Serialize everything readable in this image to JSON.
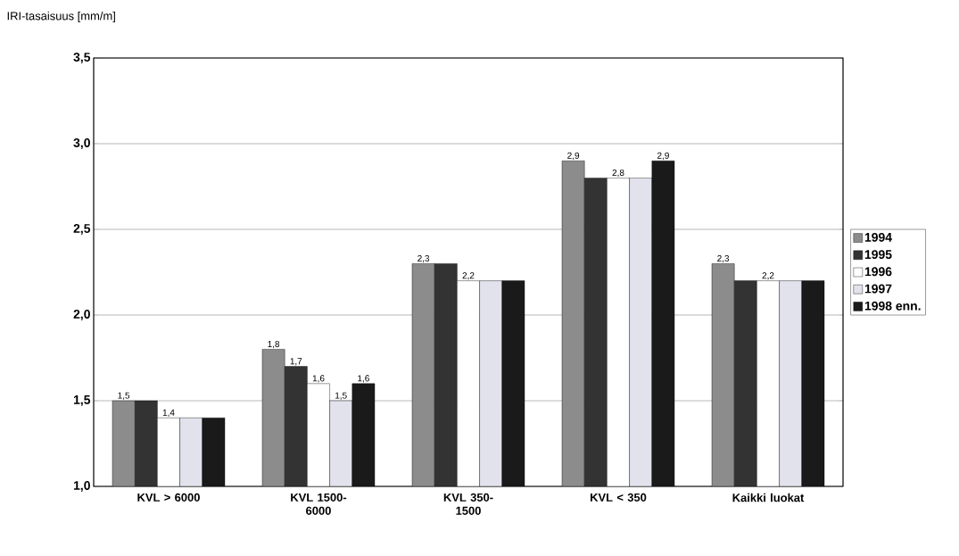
{
  "chart_data": {
    "type": "bar",
    "ylabel": "IRI-tasaisuus [mm/m]",
    "categories": [
      "KVL > 6000",
      "KVL 1500-6000",
      "KVL 350-1500",
      "KVL < 350",
      "Kaikki luokat"
    ],
    "series": [
      {
        "name": "1994",
        "color": "#8c8c8c",
        "values": [
          1.5,
          1.8,
          2.3,
          2.9,
          2.3
        ],
        "value_labels": [
          "1,5",
          "1,8",
          "2,3",
          "2,9",
          "2,3"
        ]
      },
      {
        "name": "1995",
        "color": "#333333",
        "values": [
          1.5,
          1.7,
          2.3,
          2.8,
          2.2
        ],
        "value_labels": [
          null,
          "1,7",
          null,
          null,
          null
        ]
      },
      {
        "name": "1996",
        "color": "#ffffff",
        "values": [
          1.4,
          1.6,
          2.2,
          2.8,
          2.2
        ],
        "value_labels": [
          "1,4",
          "1,6",
          "2,2",
          "2,8",
          "2,2"
        ]
      },
      {
        "name": "1997",
        "color": "#e2e2ec",
        "values": [
          1.4,
          1.5,
          2.2,
          2.8,
          2.2
        ],
        "value_labels": [
          null,
          "1,5",
          null,
          null,
          null
        ]
      },
      {
        "name": "1998 enn.",
        "color": "#1a1a1a",
        "values": [
          1.4,
          1.6,
          2.2,
          2.9,
          2.2
        ],
        "value_labels": [
          null,
          "1,6",
          null,
          "2,9",
          null
        ]
      }
    ],
    "ylim": [
      1.0,
      3.5
    ],
    "yticks": [
      {
        "value": 1.0,
        "label": "1,0"
      },
      {
        "value": 1.5,
        "label": "1,5"
      },
      {
        "value": 2.0,
        "label": "2,0"
      },
      {
        "value": 2.5,
        "label": "2,5"
      },
      {
        "value": 3.0,
        "label": "3,0"
      },
      {
        "value": 3.5,
        "label": "3,5"
      }
    ],
    "grid": "y",
    "legend": "right"
  }
}
